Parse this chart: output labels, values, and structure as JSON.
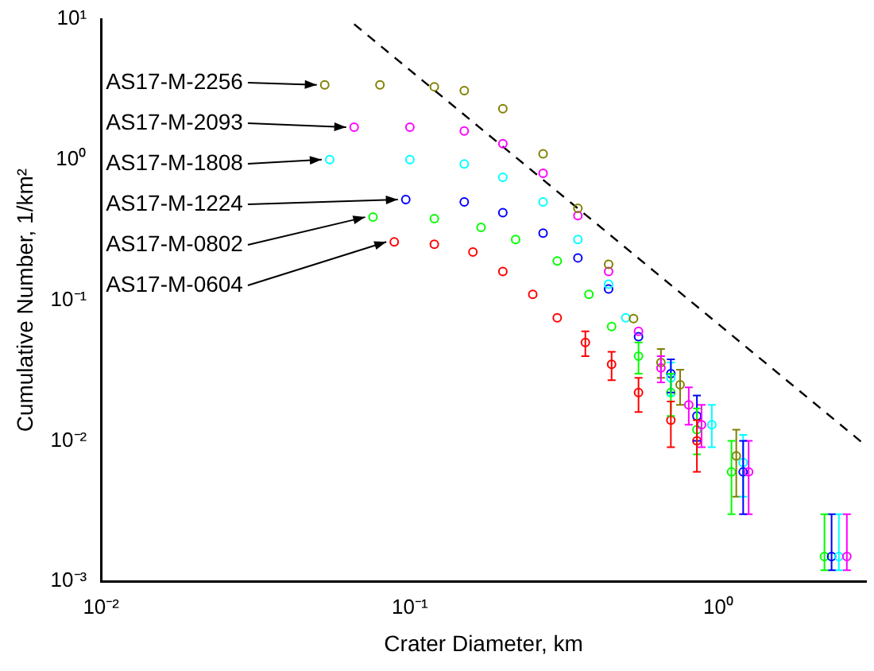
{
  "chart_data": {
    "type": "scatter",
    "xlabel": "Crater Diameter, km",
    "ylabel": "Cumulative Number, 1/km²",
    "log": "xy",
    "grid": false,
    "legend": false,
    "marker": "circle",
    "xlim": [
      0.01,
      3
    ],
    "xticks": [
      {
        "value": 0.01,
        "label": "10⁻²"
      },
      {
        "value": 0.1,
        "label": "10⁻¹"
      },
      {
        "value": 1,
        "label": "10⁰"
      }
    ],
    "ylim": [
      0.001,
      10
    ],
    "yticks": [
      {
        "value": 0.001,
        "label": "10⁻³"
      },
      {
        "value": 0.01,
        "label": "10⁻²"
      },
      {
        "value": 0.1,
        "label": "10⁻¹"
      },
      {
        "value": 1,
        "label": "10⁰"
      },
      {
        "value": 10,
        "label": "10¹"
      }
    ],
    "series": [
      {
        "name": "AS17-M-2256",
        "color": "#808000",
        "x": [
          0.053,
          0.08,
          0.12,
          0.15,
          0.2,
          0.27,
          0.35,
          0.44,
          0.53,
          0.65,
          0.75,
          1.14
        ],
        "values": [
          3.4,
          3.4,
          3.3,
          3.1,
          2.3,
          1.1,
          0.45,
          0.18,
          0.074,
          0.036,
          0.025,
          0.0078
        ],
        "errors": [
          null,
          null,
          null,
          null,
          null,
          null,
          null,
          null,
          null,
          [
            0.028,
            0.045
          ],
          [
            0.018,
            0.032
          ],
          [
            0.004,
            0.012
          ]
        ]
      },
      {
        "name": "AS17-M-2093",
        "color": "#ff00ff",
        "x": [
          0.066,
          0.1,
          0.15,
          0.2,
          0.27,
          0.35,
          0.44,
          0.55,
          0.65,
          0.8,
          0.88,
          1.25,
          2.6
        ],
        "values": [
          1.7,
          1.7,
          1.6,
          1.3,
          0.8,
          0.4,
          0.16,
          0.06,
          0.033,
          0.018,
          0.013,
          0.006,
          0.0015
        ],
        "errors": [
          null,
          null,
          null,
          null,
          null,
          null,
          null,
          null,
          [
            0.026,
            0.04
          ],
          [
            0.013,
            0.024
          ],
          [
            0.009,
            0.018
          ],
          [
            0.003,
            0.01
          ],
          [
            0.0012,
            0.003
          ]
        ]
      },
      {
        "name": "AS17-M-1808",
        "color": "#00ffff",
        "x": [
          0.055,
          0.1,
          0.15,
          0.2,
          0.27,
          0.35,
          0.44,
          0.5,
          0.7,
          0.95,
          1.2,
          2.45
        ],
        "values": [
          1.0,
          1.0,
          0.93,
          0.75,
          0.5,
          0.27,
          0.13,
          0.075,
          0.028,
          0.013,
          0.007,
          0.0015
        ],
        "errors": [
          null,
          null,
          null,
          null,
          null,
          null,
          null,
          null,
          [
            0.021,
            0.036
          ],
          [
            0.009,
            0.018
          ],
          [
            0.004,
            0.011
          ],
          [
            0.0012,
            0.003
          ]
        ]
      },
      {
        "name": "AS17-M-1224",
        "color": "#0000ff",
        "x": [
          0.097,
          0.15,
          0.2,
          0.27,
          0.35,
          0.44,
          0.55,
          0.7,
          0.85,
          1.2,
          2.32
        ],
        "values": [
          0.52,
          0.5,
          0.42,
          0.3,
          0.2,
          0.12,
          0.055,
          0.03,
          0.015,
          0.006,
          0.0015
        ],
        "errors": [
          null,
          null,
          null,
          null,
          null,
          null,
          null,
          [
            0.022,
            0.038
          ],
          [
            0.01,
            0.021
          ],
          [
            0.003,
            0.01
          ],
          [
            0.0012,
            0.003
          ]
        ]
      },
      {
        "name": "AS17-M-0802",
        "color": "#00ff00",
        "x": [
          0.076,
          0.12,
          0.17,
          0.22,
          0.3,
          0.38,
          0.45,
          0.55,
          0.7,
          0.85,
          1.1,
          2.2
        ],
        "values": [
          0.39,
          0.38,
          0.33,
          0.27,
          0.19,
          0.11,
          0.065,
          0.04,
          0.022,
          0.012,
          0.006,
          0.0015
        ],
        "errors": [
          null,
          null,
          null,
          null,
          null,
          null,
          null,
          [
            0.03,
            0.05
          ],
          [
            0.015,
            0.03
          ],
          [
            0.008,
            0.017
          ],
          [
            0.003,
            0.01
          ],
          [
            0.0012,
            0.003
          ]
        ]
      },
      {
        "name": "AS17-M-0604",
        "color": "#ff0000",
        "x": [
          0.089,
          0.12,
          0.16,
          0.2,
          0.25,
          0.3,
          0.37,
          0.45,
          0.55,
          0.7,
          0.85
        ],
        "values": [
          0.26,
          0.25,
          0.22,
          0.16,
          0.11,
          0.075,
          0.05,
          0.035,
          0.022,
          0.014,
          0.01
        ],
        "errors": [
          null,
          null,
          null,
          null,
          null,
          null,
          [
            0.04,
            0.06
          ],
          [
            0.027,
            0.043
          ],
          [
            0.016,
            0.028
          ],
          [
            0.009,
            0.019
          ],
          [
            0.006,
            0.014
          ]
        ]
      },
      {
        "type": "line",
        "color": "#000000",
        "line_style": "dashed",
        "marker": "none",
        "x": [
          0.066,
          2.9
        ],
        "values": [
          9.2,
          0.0098
        ]
      }
    ]
  }
}
